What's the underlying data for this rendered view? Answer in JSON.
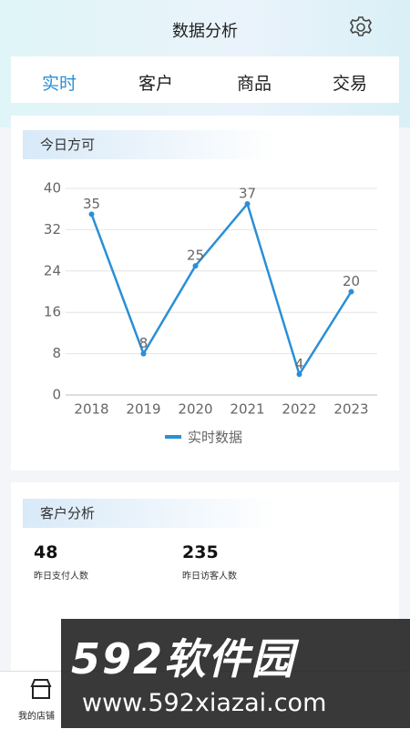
{
  "header": {
    "title": "数据分析"
  },
  "tabs": [
    "实时",
    "客户",
    "商品",
    "交易"
  ],
  "chart_section": {
    "title": "今日方可"
  },
  "chart_data": {
    "type": "line",
    "categories": [
      "2018",
      "2019",
      "2020",
      "2021",
      "2022",
      "2023"
    ],
    "series": [
      {
        "name": "实时数据",
        "color": "#2a8fd6",
        "values": [
          35,
          8,
          25,
          37,
          4,
          20
        ]
      }
    ],
    "ylim": [
      0,
      40
    ],
    "yticks": [
      0,
      8,
      16,
      24,
      32,
      40
    ],
    "grid": true
  },
  "customer_section": {
    "title": "客户分析",
    "stats": [
      {
        "value": 48,
        "label": "昨日支付人数"
      },
      {
        "value": 235,
        "label": "昨日访客人数"
      }
    ]
  },
  "bottom_nav": {
    "items": [
      "我的店铺"
    ]
  },
  "watermark": {
    "logo": "592软件园",
    "url": "www.592xiazai.com"
  }
}
